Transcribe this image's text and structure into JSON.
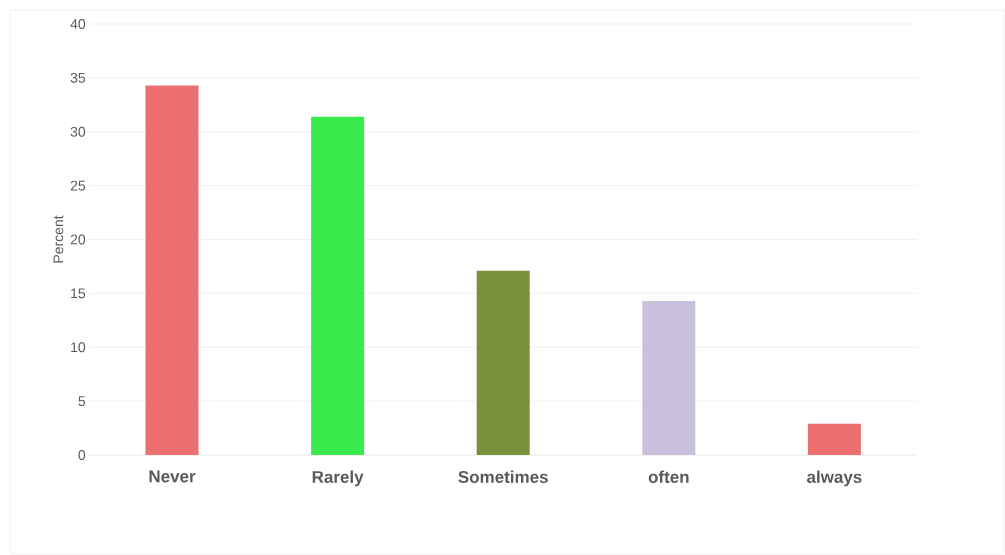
{
  "chart_data": {
    "type": "bar",
    "ylabel": "Percent",
    "categories": [
      "Never",
      "Rarely",
      "Sometimes",
      "often",
      "always"
    ],
    "values": [
      34.3,
      31.4,
      17.1,
      14.3,
      2.9
    ],
    "colors": [
      "#ec7070",
      "#3aeb4e",
      "#77923a",
      "#c9c0dc",
      "#ec7070"
    ],
    "ylim": [
      0,
      40
    ],
    "yticks": [
      0,
      5,
      10,
      15,
      20,
      25,
      30,
      35,
      40
    ],
    "grid": "y"
  }
}
